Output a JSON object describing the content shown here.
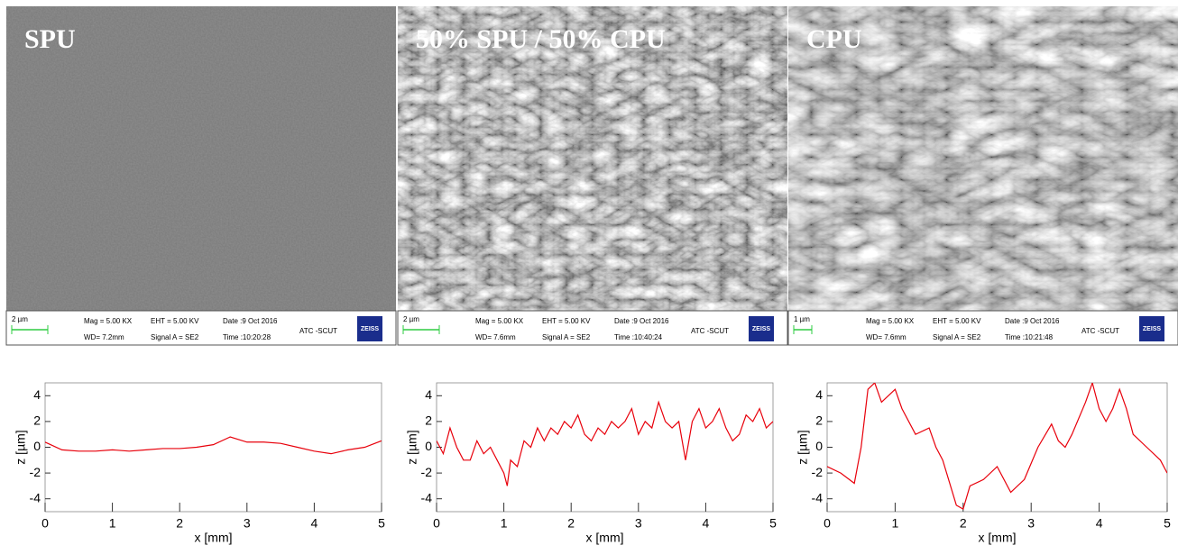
{
  "panels": [
    {
      "label": "SPU",
      "scale_bar": "2 µm",
      "mag": "Mag = 5.00 KX",
      "wd": "WD= 7.2mm",
      "eht": "EHT = 5.00 KV",
      "signal": "Signal A = SE2",
      "date": "Date :9 Oct 2016",
      "time": "Time :10:20:28",
      "institute": "ATC -SCUT",
      "logo": "ZEISS"
    },
    {
      "label": "50% SPU / 50% CPU",
      "scale_bar": "2 µm",
      "mag": "Mag = 5.00 KX",
      "wd": "WD= 7.6mm",
      "eht": "EHT = 5.00 KV",
      "signal": "Signal A = SE2",
      "date": "Date :9 Oct 2016",
      "time": "Time :10:40:24",
      "institute": "ATC -SCUT",
      "logo": "ZEISS"
    },
    {
      "label": "CPU",
      "scale_bar": "1 µm",
      "mag": "Mag = 5.00 KX",
      "wd": "WD= 7.6mm",
      "eht": "EHT = 5.00 KV",
      "signal": "Signal A = SE2",
      "date": "Date :9 Oct 2016",
      "time": "Time :10:21:48",
      "institute": "ATC -SCUT",
      "logo": "ZEISS"
    }
  ],
  "chart_data": [
    {
      "type": "line",
      "x_label": "x [mm]",
      "y_label": "z [µm]",
      "x": [
        0,
        0.25,
        0.5,
        0.75,
        1,
        1.25,
        1.5,
        1.75,
        2,
        2.25,
        2.5,
        2.75,
        3,
        3.25,
        3.5,
        3.75,
        4,
        4.25,
        4.5,
        4.75,
        5
      ],
      "series": [
        {
          "color": "#e8000b",
          "values": [
            0.4,
            -0.2,
            -0.3,
            -0.3,
            -0.2,
            -0.3,
            -0.2,
            -0.1,
            -0.1,
            0,
            0.2,
            0.8,
            0.4,
            0.4,
            0.3,
            0,
            -0.3,
            -0.5,
            -0.2,
            0,
            0.5
          ]
        }
      ],
      "xlim": [
        0,
        5
      ],
      "xticks": [
        0,
        1,
        2,
        3,
        4,
        5
      ],
      "ylim": [
        -5,
        5
      ],
      "yticks": [
        -4,
        -2,
        0,
        2,
        4
      ]
    },
    {
      "type": "line",
      "x_label": "x [mm]",
      "y_label": "z [µm]",
      "x": [
        0,
        0.1,
        0.2,
        0.3,
        0.4,
        0.5,
        0.6,
        0.7,
        0.8,
        0.9,
        1.0,
        1.05,
        1.1,
        1.2,
        1.3,
        1.4,
        1.5,
        1.6,
        1.7,
        1.8,
        1.9,
        2.0,
        2.1,
        2.2,
        2.3,
        2.4,
        2.5,
        2.6,
        2.7,
        2.8,
        2.9,
        3.0,
        3.1,
        3.2,
        3.3,
        3.4,
        3.5,
        3.6,
        3.7,
        3.8,
        3.9,
        4.0,
        4.1,
        4.2,
        4.3,
        4.4,
        4.5,
        4.6,
        4.7,
        4.8,
        4.9,
        5.0
      ],
      "series": [
        {
          "color": "#e8000b",
          "values": [
            0.5,
            -0.5,
            1.5,
            0,
            -1,
            -1,
            0.5,
            -0.5,
            0,
            -1,
            -2,
            -3,
            -1,
            -1.5,
            0.5,
            0,
            1.5,
            0.5,
            1.5,
            1,
            2,
            1.5,
            2.5,
            1,
            0.5,
            1.5,
            1,
            2,
            1.5,
            2,
            3,
            1,
            2,
            1.5,
            3.5,
            2,
            1.5,
            2,
            -1,
            2,
            3,
            1.5,
            2,
            3,
            1.5,
            0.5,
            1,
            2.5,
            2,
            3,
            1.5,
            2
          ]
        }
      ],
      "xlim": [
        0,
        5
      ],
      "xticks": [
        0,
        1,
        2,
        3,
        4,
        5
      ],
      "ylim": [
        -5,
        5
      ],
      "yticks": [
        -4,
        -2,
        0,
        2,
        4
      ]
    },
    {
      "type": "line",
      "x_label": "x [mm]",
      "y_label": "z [µm]",
      "x": [
        0,
        0.2,
        0.4,
        0.5,
        0.6,
        0.7,
        0.8,
        1.0,
        1.1,
        1.3,
        1.5,
        1.6,
        1.7,
        1.9,
        2.0,
        2.1,
        2.3,
        2.5,
        2.7,
        2.9,
        3.1,
        3.3,
        3.4,
        3.5,
        3.6,
        3.8,
        3.9,
        4.0,
        4.1,
        4.2,
        4.3,
        4.4,
        4.5,
        4.7,
        4.9,
        5.0
      ],
      "series": [
        {
          "color": "#e8000b",
          "values": [
            -1.5,
            -2,
            -2.8,
            0,
            4.5,
            5,
            3.5,
            4.5,
            3,
            1,
            1.5,
            0,
            -1,
            -4.5,
            -4.8,
            -3,
            -2.5,
            -1.5,
            -3.5,
            -2.5,
            0,
            1.8,
            0.5,
            0,
            1,
            3.5,
            5,
            3,
            2,
            3,
            4.5,
            3,
            1,
            0,
            -1,
            -2
          ]
        }
      ],
      "xlim": [
        0,
        5
      ],
      "xticks": [
        0,
        1,
        2,
        3,
        4,
        5
      ],
      "ylim": [
        -5,
        5
      ],
      "yticks": [
        -4,
        -2,
        0,
        2,
        4
      ]
    }
  ]
}
